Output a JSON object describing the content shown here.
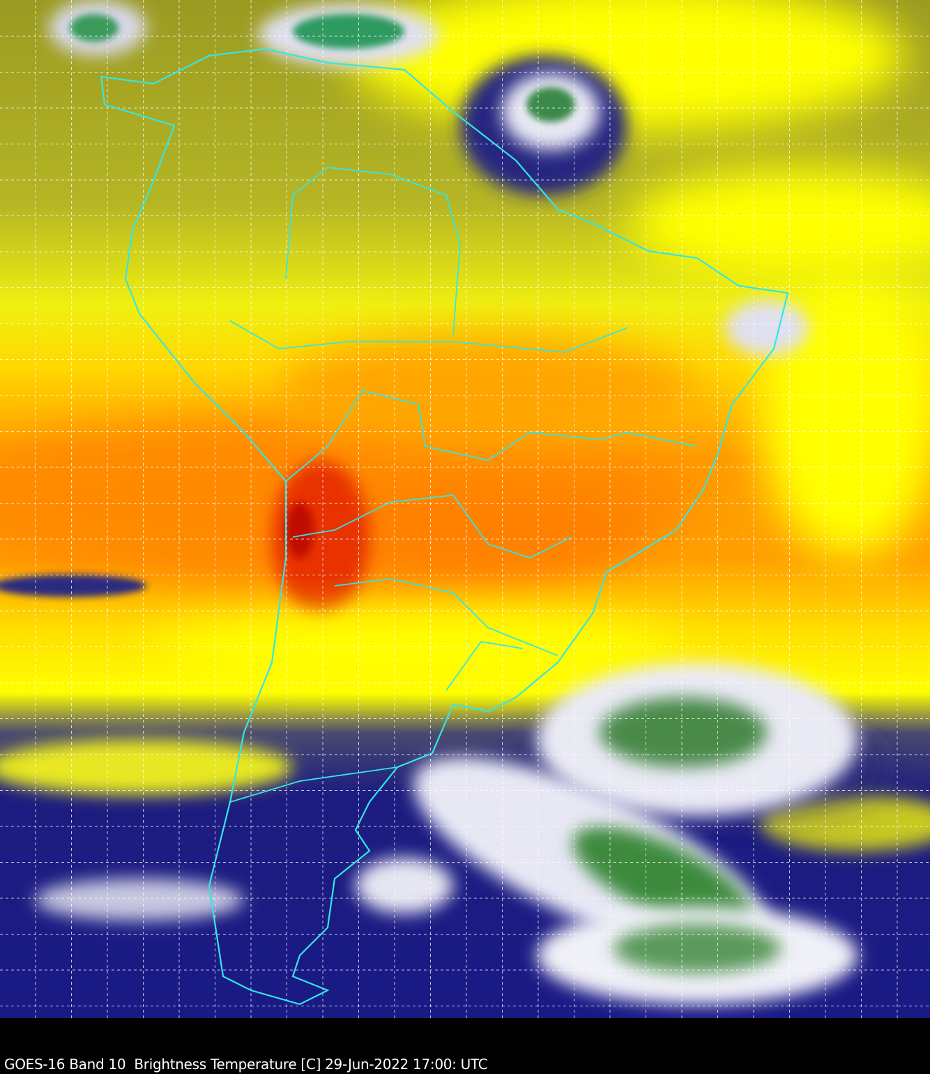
{
  "caption": "GOES-16 Band 10  Brightness Temperature [C] 29-Jun-2022 17:00: UTC",
  "colors": {
    "coastline": "#33e6e6",
    "grid": "#ffffff",
    "cold_cloud": "#1a1a80",
    "very_cold_cloud": "#2e8b3e",
    "moist": "#9a9a1e",
    "dry": "#ffff00",
    "very_dry": "#ff8000",
    "extreme_dry": "#e02000"
  }
}
